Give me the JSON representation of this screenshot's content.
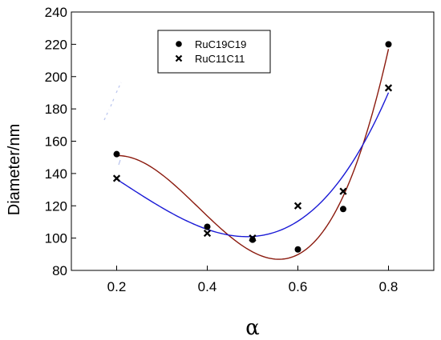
{
  "chart_data": {
    "type": "scatter",
    "title": "",
    "xlabel": "α",
    "ylabel": "Diameter/nm",
    "xlim": [
      0.1,
      0.9
    ],
    "ylim": [
      80,
      240
    ],
    "xticks": [
      "0.2",
      "0.4",
      "0.6",
      "0.8"
    ],
    "xtick_values": [
      0.2,
      0.4,
      0.6,
      0.8
    ],
    "yticks": [
      "80",
      "100",
      "120",
      "140",
      "160",
      "180",
      "200",
      "220",
      "240"
    ],
    "ytick_values": [
      80,
      100,
      120,
      140,
      160,
      180,
      200,
      220,
      240
    ],
    "grid": false,
    "legend_position": "top-left",
    "series": [
      {
        "name": "RuC19C19",
        "marker": "circle",
        "fit_color": "#8b1a0e",
        "x": [
          0.2,
          0.4,
          0.5,
          0.6,
          0.7,
          0.8
        ],
        "y": [
          152,
          107,
          99,
          93,
          118,
          220
        ]
      },
      {
        "name": "RuC11C11",
        "marker": "cross",
        "fit_color": "#1a1ad6",
        "x": [
          0.2,
          0.4,
          0.5,
          0.6,
          0.7,
          0.8
        ],
        "y": [
          137,
          103,
          100,
          120,
          129,
          193
        ]
      }
    ]
  }
}
